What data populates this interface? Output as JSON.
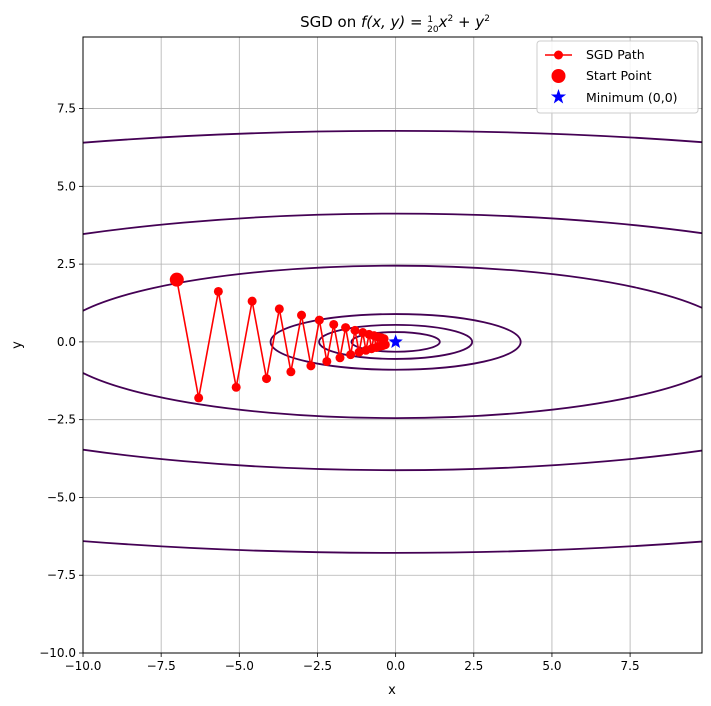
{
  "chart_data": {
    "type": "line",
    "title": "SGD on f(x, y) = ½₀x² + y²",
    "title_parts": {
      "prefix": "SGD on ",
      "func": "f(x, y) = ",
      "num": "1",
      "den": "20",
      "rest": "x",
      "plus": " + y"
    },
    "xlabel": "x",
    "ylabel": "y",
    "xlim": [
      -10,
      9.8
    ],
    "ylim": [
      -10,
      9.8
    ],
    "x_ticks": [
      -10.0,
      -7.5,
      -5.0,
      -2.5,
      0.0,
      2.5,
      5.0,
      7.5
    ],
    "y_ticks": [
      -10.0,
      -7.5,
      -5.0,
      -2.5,
      0.0,
      2.5,
      5.0,
      7.5
    ],
    "x_tick_labels": [
      "−10.0",
      "−7.5",
      "−5.0",
      "−2.5",
      "0.0",
      "2.5",
      "5.0",
      "7.5"
    ],
    "y_tick_labels": [
      "−10.0",
      "−7.5",
      "−5.0",
      "−2.5",
      "0.0",
      "2.5",
      "5.0",
      "7.5"
    ],
    "grid": true,
    "legend_position": "top-right",
    "contour_levels": [
      0.1,
      0.3,
      0.8,
      6,
      17,
      46
    ],
    "contour_colors": [
      "#440154",
      "#440154",
      "#440154",
      "#440154",
      "#440154",
      "#440154"
    ],
    "series": [
      {
        "name": "SGD Path",
        "color": "#ff0000",
        "x": [
          -7.0,
          -6.3,
          -5.67,
          -5.1,
          -4.59,
          -4.13,
          -3.72,
          -3.35,
          -3.01,
          -2.71,
          -2.44,
          -2.2,
          -1.98,
          -1.78,
          -1.6,
          -1.44,
          -1.3,
          -1.17,
          -1.05,
          -0.95,
          -0.85,
          -0.77,
          -0.69,
          -0.62,
          -0.56,
          -0.5,
          -0.45,
          -0.41,
          -0.37,
          -0.33
        ],
        "y": [
          2.0,
          -1.8,
          1.62,
          -1.46,
          1.31,
          -1.18,
          1.06,
          -0.96,
          0.86,
          -0.77,
          0.7,
          -0.63,
          0.56,
          -0.51,
          0.46,
          -0.41,
          0.37,
          -0.33,
          0.3,
          -0.27,
          0.24,
          -0.22,
          0.2,
          -0.18,
          0.16,
          -0.14,
          0.13,
          -0.12,
          0.1,
          -0.09
        ]
      },
      {
        "name": "Start Point",
        "color": "#ff0000",
        "x": [
          -7.0
        ],
        "y": [
          2.0
        ]
      },
      {
        "name": "Minimum (0,0)",
        "color": "#0000ff",
        "x": [
          0.0
        ],
        "y": [
          0.0
        ]
      }
    ]
  }
}
